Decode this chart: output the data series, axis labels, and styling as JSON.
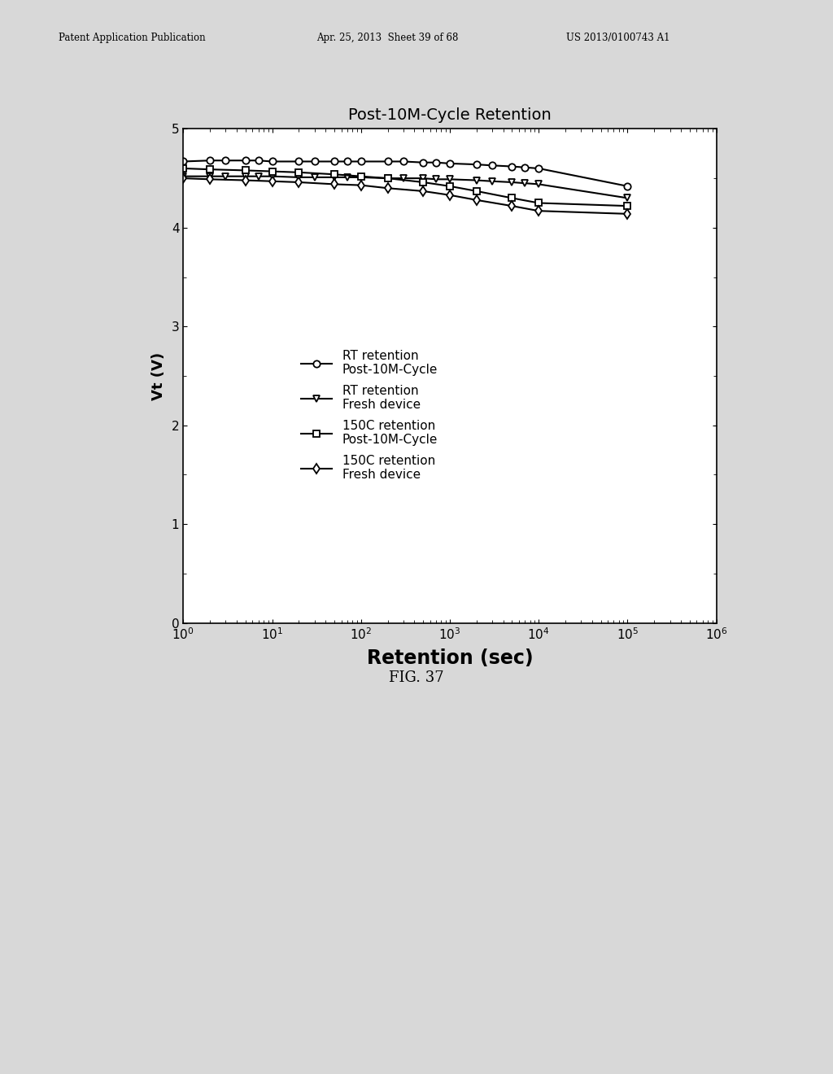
{
  "title": "Post-10M-Cycle Retention",
  "xlabel": "Retention (sec)",
  "ylabel": "Vt (V)",
  "xlim": [
    1.0,
    1000000.0
  ],
  "ylim": [
    0.0,
    5.0
  ],
  "yticks": [
    0.0,
    1.0,
    2.0,
    3.0,
    4.0,
    5.0
  ],
  "background_color": "#d8d8d8",
  "plot_bg_color": "#ffffff",
  "fig_caption": "FIG. 37",
  "series": [
    {
      "label": "RT retention\nPost-10M-Cycle",
      "marker": "o",
      "color": "#000000",
      "x": [
        1,
        2,
        3,
        5,
        7,
        10,
        20,
        30,
        50,
        70,
        100,
        200,
        300,
        500,
        700,
        1000,
        2000,
        3000,
        5000,
        7000,
        10000,
        100000
      ],
      "y": [
        4.67,
        4.68,
        4.68,
        4.68,
        4.68,
        4.67,
        4.67,
        4.67,
        4.67,
        4.67,
        4.67,
        4.67,
        4.67,
        4.66,
        4.66,
        4.65,
        4.64,
        4.63,
        4.62,
        4.61,
        4.6,
        4.42
      ]
    },
    {
      "label": "RT retention\nFresh device",
      "marker": "v",
      "color": "#000000",
      "x": [
        1,
        2,
        3,
        5,
        7,
        10,
        20,
        30,
        50,
        70,
        100,
        200,
        300,
        500,
        700,
        1000,
        2000,
        3000,
        5000,
        7000,
        10000,
        100000
      ],
      "y": [
        4.52,
        4.52,
        4.52,
        4.52,
        4.52,
        4.52,
        4.51,
        4.51,
        4.51,
        4.51,
        4.51,
        4.5,
        4.5,
        4.5,
        4.49,
        4.49,
        4.48,
        4.47,
        4.46,
        4.45,
        4.44,
        4.3
      ]
    },
    {
      "label": "150C retention\nPost-10M-Cycle",
      "marker": "s",
      "color": "#000000",
      "x": [
        1,
        2,
        5,
        10,
        20,
        50,
        100,
        200,
        500,
        1000,
        2000,
        5000,
        10000,
        100000
      ],
      "y": [
        4.6,
        4.59,
        4.58,
        4.57,
        4.56,
        4.54,
        4.52,
        4.5,
        4.46,
        4.42,
        4.37,
        4.3,
        4.25,
        4.22
      ]
    },
    {
      "label": "150C retention\nFresh device",
      "marker": "D",
      "color": "#000000",
      "x": [
        1,
        2,
        5,
        10,
        20,
        50,
        100,
        200,
        500,
        1000,
        2000,
        5000,
        10000,
        100000
      ],
      "y": [
        4.5,
        4.49,
        4.48,
        4.47,
        4.46,
        4.44,
        4.43,
        4.4,
        4.37,
        4.33,
        4.28,
        4.22,
        4.17,
        4.14
      ]
    }
  ]
}
